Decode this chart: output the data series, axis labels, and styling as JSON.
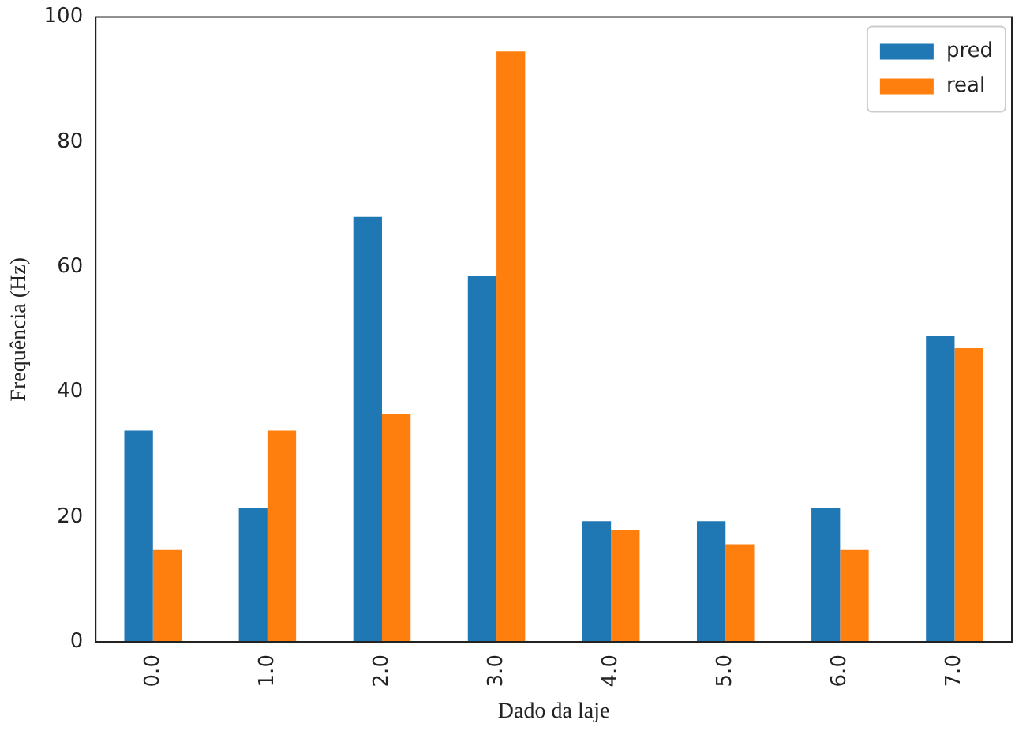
{
  "chart_data": {
    "type": "bar",
    "xlabel": "Dado da laje",
    "ylabel": "Frequência (Hz)",
    "categories": [
      "0.0",
      "1.0",
      "2.0",
      "3.0",
      "4.0",
      "5.0",
      "6.0",
      "7.0"
    ],
    "series": [
      {
        "name": "pred",
        "color": "#1f77b4",
        "values": [
          33.8,
          21.5,
          68,
          58.5,
          19.3,
          19.3,
          21.5,
          48.9
        ]
      },
      {
        "name": "real",
        "color": "#ff7f0e",
        "values": [
          14.7,
          33.8,
          36.5,
          94.5,
          17.9,
          15.6,
          14.7,
          47
        ]
      }
    ],
    "ylim": [
      0,
      100
    ],
    "yticks": [
      0,
      20,
      40,
      60,
      80,
      100
    ],
    "grid": false,
    "legend": "top right"
  }
}
